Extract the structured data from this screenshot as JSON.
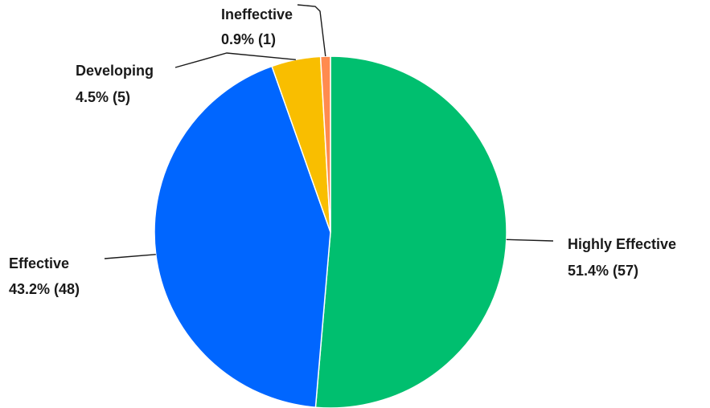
{
  "chart_data": {
    "type": "pie",
    "title": "",
    "slices": [
      {
        "label": "Highly Effective",
        "percent_text": "51.4% (57)",
        "value": 57,
        "color": "#00BF6F"
      },
      {
        "label": "Effective",
        "percent_text": "43.2% (48)",
        "value": 48,
        "color": "#0066FF"
      },
      {
        "label": "Developing",
        "percent_text": "4.5% (5)",
        "value": 5,
        "color": "#F9BE00"
      },
      {
        "label": "Ineffective",
        "percent_text": "0.9% (1)",
        "value": 1,
        "color": "#FF8B4F"
      }
    ],
    "start_angle": "12 o'clock",
    "direction": "clockwise",
    "legend": "none"
  }
}
